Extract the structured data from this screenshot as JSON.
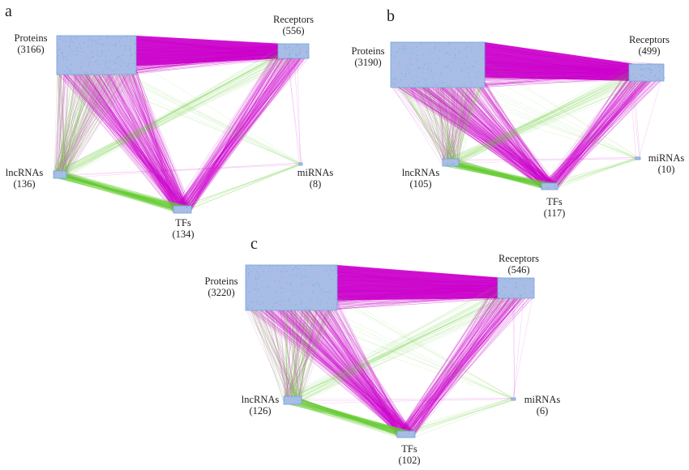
{
  "panels": [
    {
      "id": "a",
      "label": "a",
      "nodes": [
        {
          "key": "proteins",
          "name": "Proteins",
          "count": "(3166)"
        },
        {
          "key": "receptors",
          "name": "Receptors",
          "count": "(556)"
        },
        {
          "key": "lncrnas",
          "name": "lncRNAs",
          "count": "(136)"
        },
        {
          "key": "mirnas",
          "name": "miRNAs",
          "count": "(8)"
        },
        {
          "key": "tfs",
          "name": "TFs",
          "count": "(134)"
        }
      ]
    },
    {
      "id": "b",
      "label": "b",
      "nodes": [
        {
          "key": "proteins",
          "name": "Proteins",
          "count": "(3190)"
        },
        {
          "key": "receptors",
          "name": "Receptors",
          "count": "(499)"
        },
        {
          "key": "lncrnas",
          "name": "lncRNAs",
          "count": "(105)"
        },
        {
          "key": "mirnas",
          "name": "miRNAs",
          "count": "(10)"
        },
        {
          "key": "tfs",
          "name": "TFs",
          "count": "(117)"
        }
      ]
    },
    {
      "id": "c",
      "label": "c",
      "nodes": [
        {
          "key": "proteins",
          "name": "Proteins",
          "count": "(3220)"
        },
        {
          "key": "receptors",
          "name": "Receptors",
          "count": "(546)"
        },
        {
          "key": "lncrnas",
          "name": "lncRNAs",
          "count": "(126)"
        },
        {
          "key": "mirnas",
          "name": "miRNAs",
          "count": "(6)"
        },
        {
          "key": "tfs",
          "name": "TFs",
          "count": "(102)"
        }
      ]
    }
  ],
  "colors": {
    "node_fill": "#a7bde6",
    "node_edge": "#6fa6d6",
    "magenta_edges": "#cc00cc",
    "green_edges": "#66cc33"
  }
}
